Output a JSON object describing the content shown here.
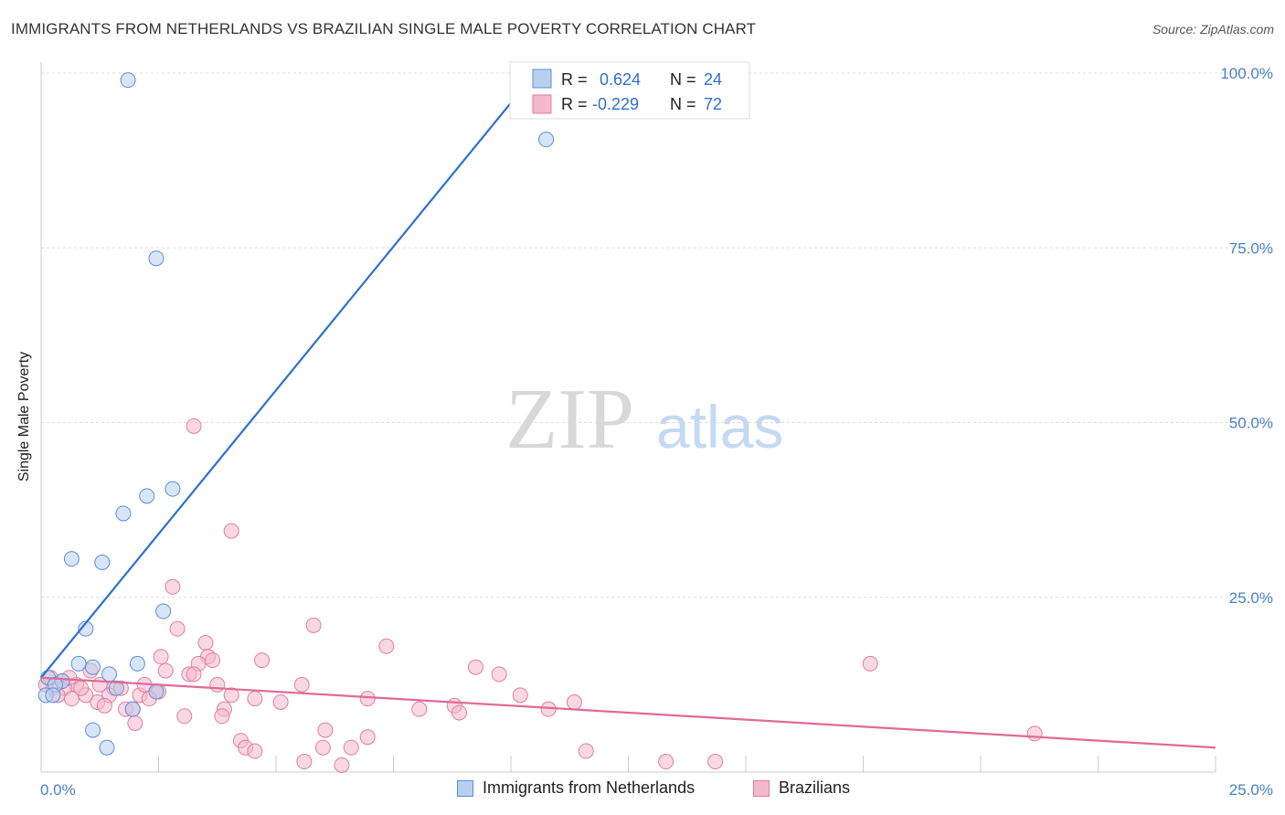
{
  "title": "IMMIGRANTS FROM NETHERLANDS VS BRAZILIAN SINGLE MALE POVERTY CORRELATION CHART",
  "source": "Source: ZipAtlas.com",
  "watermark": {
    "zip": "ZIP",
    "atlas": "atlas"
  },
  "colors": {
    "blue_fill": "#b8d0f0",
    "blue_stroke": "#5b8fd6",
    "blue_line": "#2f6fce",
    "pink_fill": "#f5b8cc",
    "pink_stroke": "#e07ea0",
    "pink_line": "#e06a95",
    "grid": "#dddddd",
    "tick_text": "#4a7fc8"
  },
  "legend": {
    "rows": [
      {
        "r_label": "R = ",
        "r_value": "0.624",
        "n_label": "N = ",
        "n_value": "24",
        "color": "blue"
      },
      {
        "r_label": "R = ",
        "r_value": "-0.229",
        "n_label": "N = ",
        "n_value": "72",
        "color": "pink"
      }
    ]
  },
  "bottom_legend": [
    {
      "label": "Immigrants from Netherlands",
      "color": "blue"
    },
    {
      "label": "Brazilians",
      "color": "pink"
    }
  ],
  "chart_data": {
    "type": "scatter",
    "title": "IMMIGRANTS FROM NETHERLANDS VS BRAZILIAN SINGLE MALE POVERTY CORRELATION CHART",
    "xlabel": "",
    "ylabel": "Single Male Poverty",
    "xlim": [
      0,
      25
    ],
    "ylim": [
      0,
      100
    ],
    "x_tick_labels": [
      "0.0%",
      "25.0%"
    ],
    "y_ticks": [
      25,
      50,
      75,
      100
    ],
    "y_tick_labels": [
      "25.0%",
      "50.0%",
      "75.0%",
      "100.0%"
    ],
    "grid": true,
    "series": [
      {
        "name": "Immigrants from Netherlands",
        "color": "blue",
        "r": 0.624,
        "n": 24,
        "trendline": {
          "x": [
            0.0,
            10.7
          ],
          "y": [
            13.5,
            101.5
          ]
        },
        "points": [
          {
            "x": 1.85,
            "y": 99.0
          },
          {
            "x": 10.75,
            "y": 90.5
          },
          {
            "x": 2.45,
            "y": 73.5
          },
          {
            "x": 2.8,
            "y": 40.5
          },
          {
            "x": 2.25,
            "y": 39.5
          },
          {
            "x": 1.75,
            "y": 37.0
          },
          {
            "x": 0.65,
            "y": 30.5
          },
          {
            "x": 1.3,
            "y": 30.0
          },
          {
            "x": 2.6,
            "y": 23.0
          },
          {
            "x": 0.95,
            "y": 20.5
          },
          {
            "x": 0.8,
            "y": 15.5
          },
          {
            "x": 1.1,
            "y": 15.0
          },
          {
            "x": 2.05,
            "y": 15.5
          },
          {
            "x": 1.45,
            "y": 14.0
          },
          {
            "x": 0.15,
            "y": 13.5
          },
          {
            "x": 0.45,
            "y": 13.0
          },
          {
            "x": 0.3,
            "y": 12.5
          },
          {
            "x": 0.1,
            "y": 11.0
          },
          {
            "x": 0.25,
            "y": 11.0
          },
          {
            "x": 1.6,
            "y": 12.0
          },
          {
            "x": 2.45,
            "y": 11.5
          },
          {
            "x": 1.95,
            "y": 9.0
          },
          {
            "x": 1.1,
            "y": 6.0
          },
          {
            "x": 1.4,
            "y": 3.5
          }
        ]
      },
      {
        "name": "Brazilians",
        "color": "pink",
        "r": -0.229,
        "n": 72,
        "trendline": {
          "x": [
            0.0,
            25.0
          ],
          "y": [
            13.5,
            3.5
          ]
        },
        "points": [
          {
            "x": 3.25,
            "y": 49.5
          },
          {
            "x": 4.05,
            "y": 34.5
          },
          {
            "x": 2.8,
            "y": 26.5
          },
          {
            "x": 5.8,
            "y": 21.0
          },
          {
            "x": 2.9,
            "y": 20.5
          },
          {
            "x": 3.5,
            "y": 18.5
          },
          {
            "x": 7.35,
            "y": 18.0
          },
          {
            "x": 2.55,
            "y": 16.5
          },
          {
            "x": 3.55,
            "y": 16.5
          },
          {
            "x": 3.65,
            "y": 16.0
          },
          {
            "x": 4.7,
            "y": 16.0
          },
          {
            "x": 3.35,
            "y": 15.5
          },
          {
            "x": 17.65,
            "y": 15.5
          },
          {
            "x": 9.25,
            "y": 15.0
          },
          {
            "x": 9.75,
            "y": 14.0
          },
          {
            "x": 3.15,
            "y": 14.0
          },
          {
            "x": 3.25,
            "y": 14.0
          },
          {
            "x": 1.05,
            "y": 14.5
          },
          {
            "x": 2.65,
            "y": 14.5
          },
          {
            "x": 0.45,
            "y": 13.0
          },
          {
            "x": 0.75,
            "y": 12.5
          },
          {
            "x": 1.25,
            "y": 12.5
          },
          {
            "x": 0.25,
            "y": 12.0
          },
          {
            "x": 0.5,
            "y": 12.0
          },
          {
            "x": 1.55,
            "y": 12.0
          },
          {
            "x": 2.45,
            "y": 11.5
          },
          {
            "x": 2.5,
            "y": 11.5
          },
          {
            "x": 3.75,
            "y": 12.5
          },
          {
            "x": 5.55,
            "y": 12.5
          },
          {
            "x": 0.35,
            "y": 11.0
          },
          {
            "x": 0.65,
            "y": 10.5
          },
          {
            "x": 0.95,
            "y": 11.0
          },
          {
            "x": 1.45,
            "y": 11.0
          },
          {
            "x": 2.1,
            "y": 11.0
          },
          {
            "x": 2.3,
            "y": 10.5
          },
          {
            "x": 4.05,
            "y": 11.0
          },
          {
            "x": 4.55,
            "y": 10.5
          },
          {
            "x": 5.1,
            "y": 10.0
          },
          {
            "x": 6.95,
            "y": 10.5
          },
          {
            "x": 10.2,
            "y": 11.0
          },
          {
            "x": 11.35,
            "y": 10.0
          },
          {
            "x": 1.2,
            "y": 10.0
          },
          {
            "x": 1.35,
            "y": 9.5
          },
          {
            "x": 1.8,
            "y": 9.0
          },
          {
            "x": 1.95,
            "y": 9.0
          },
          {
            "x": 3.9,
            "y": 9.0
          },
          {
            "x": 8.05,
            "y": 9.0
          },
          {
            "x": 8.8,
            "y": 9.5
          },
          {
            "x": 8.9,
            "y": 8.5
          },
          {
            "x": 10.8,
            "y": 9.0
          },
          {
            "x": 3.05,
            "y": 8.0
          },
          {
            "x": 3.85,
            "y": 8.0
          },
          {
            "x": 2.0,
            "y": 7.0
          },
          {
            "x": 6.05,
            "y": 6.0
          },
          {
            "x": 6.95,
            "y": 5.0
          },
          {
            "x": 21.15,
            "y": 5.5
          },
          {
            "x": 4.25,
            "y": 4.5
          },
          {
            "x": 4.35,
            "y": 3.5
          },
          {
            "x": 4.55,
            "y": 3.0
          },
          {
            "x": 6.0,
            "y": 3.5
          },
          {
            "x": 6.6,
            "y": 3.5
          },
          {
            "x": 11.6,
            "y": 3.0
          },
          {
            "x": 5.6,
            "y": 1.5
          },
          {
            "x": 6.4,
            "y": 1.0
          },
          {
            "x": 13.3,
            "y": 1.5
          },
          {
            "x": 14.35,
            "y": 1.5
          },
          {
            "x": 0.1,
            "y": 12.5
          },
          {
            "x": 0.2,
            "y": 13.5
          },
          {
            "x": 0.6,
            "y": 13.5
          },
          {
            "x": 0.85,
            "y": 12.0
          },
          {
            "x": 1.7,
            "y": 12.0
          },
          {
            "x": 2.2,
            "y": 12.5
          }
        ]
      }
    ]
  }
}
